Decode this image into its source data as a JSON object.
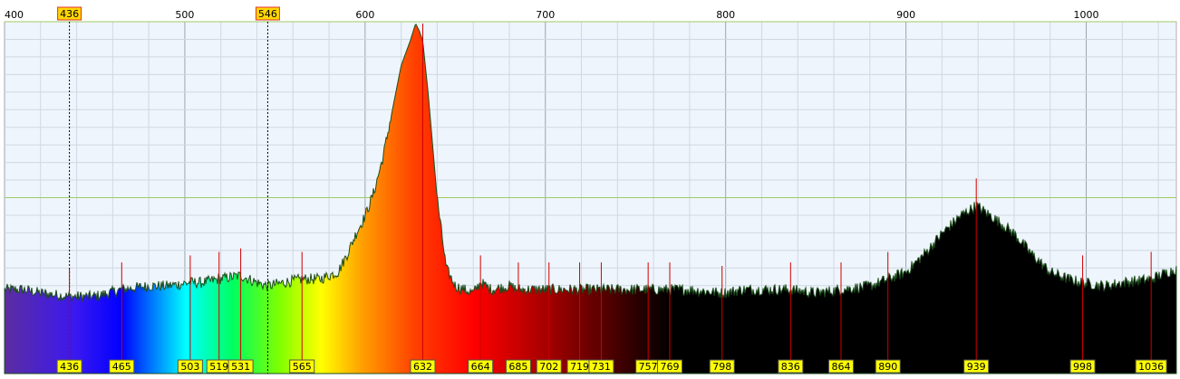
{
  "chart_data": {
    "type": "area",
    "title": "",
    "xlabel": "",
    "ylabel": "",
    "xlim": [
      400,
      1050
    ],
    "ylim": [
      0,
      100
    ],
    "grid": true,
    "x_ticks": [
      400,
      500,
      600,
      700,
      800,
      900,
      1000
    ],
    "x_tick_labels": [
      "400",
      "500",
      "600",
      "700",
      "800",
      "900",
      "1000"
    ],
    "reference_lines": [
      {
        "value": 436,
        "label": "436"
      },
      {
        "value": 546,
        "label": "546"
      }
    ],
    "peak_labels": [
      {
        "x": 436,
        "label": "436"
      },
      {
        "x": 465,
        "label": "465"
      },
      {
        "x": 503,
        "label": "503"
      },
      {
        "x": 519,
        "label": "519"
      },
      {
        "x": 531,
        "label": "531"
      },
      {
        "x": 565,
        "label": "565"
      },
      {
        "x": 632,
        "label": "632"
      },
      {
        "x": 664,
        "label": "664"
      },
      {
        "x": 685,
        "label": "685"
      },
      {
        "x": 702,
        "label": "702"
      },
      {
        "x": 719,
        "label": "719"
      },
      {
        "x": 731,
        "label": "731"
      },
      {
        "x": 757,
        "label": "757"
      },
      {
        "x": 769,
        "label": "769"
      },
      {
        "x": 798,
        "label": "798"
      },
      {
        "x": 836,
        "label": "836"
      },
      {
        "x": 864,
        "label": "864"
      },
      {
        "x": 890,
        "label": "890"
      },
      {
        "x": 939,
        "label": "939"
      },
      {
        "x": 998,
        "label": "998"
      },
      {
        "x": 1036,
        "label": "1036"
      }
    ],
    "series": [
      {
        "x": [
          400,
          410,
          420,
          436,
          450,
          465,
          480,
          490,
          503,
          510,
          519,
          531,
          540,
          546,
          555,
          565,
          575,
          585,
          590,
          595,
          600,
          605,
          610,
          615,
          620,
          625,
          628,
          630,
          632,
          635,
          640,
          645,
          650,
          655,
          660,
          664,
          670,
          680,
          685,
          700,
          720,
          740,
          757,
          769,
          780,
          798,
          810,
          825,
          836,
          850,
          864,
          880,
          890,
          900,
          910,
          920,
          930,
          939,
          950,
          960,
          970,
          980,
          990,
          998,
          1010,
          1020,
          1036,
          1050
        ],
        "values": [
          24,
          24,
          23,
          22,
          22,
          24,
          25,
          25,
          26,
          26,
          27,
          28,
          26,
          25,
          26,
          27,
          27,
          29,
          34,
          40,
          45,
          52,
          62,
          75,
          88,
          95,
          100,
          98,
          95,
          80,
          50,
          30,
          25,
          24,
          23,
          26,
          24,
          25,
          24,
          24,
          24,
          24,
          24,
          24,
          24,
          23,
          24,
          24,
          24,
          23,
          24,
          25,
          27,
          29,
          34,
          40,
          45,
          48,
          44,
          40,
          34,
          29,
          27,
          26,
          25,
          26,
          27,
          30
        ]
      }
    ]
  }
}
